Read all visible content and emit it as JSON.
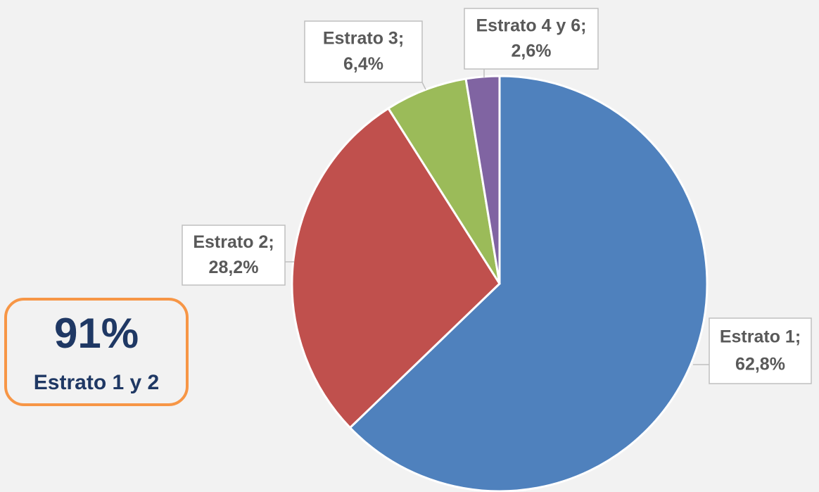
{
  "chart_data": {
    "type": "pie",
    "categories": [
      "Estrato 1;",
      "Estrato 2;",
      "Estrato 3;",
      "Estrato 4 y 6;"
    ],
    "values": [
      62.8,
      28.2,
      6.4,
      2.6
    ],
    "value_labels": [
      "62,8%",
      "28,2%",
      "6,4%",
      "2,6%"
    ],
    "colors": [
      "#4f81bd",
      "#c0504d",
      "#9bbb59",
      "#8064a2"
    ],
    "annotation": {
      "headline": "91%",
      "text": "Estrato 1 y 2"
    }
  }
}
